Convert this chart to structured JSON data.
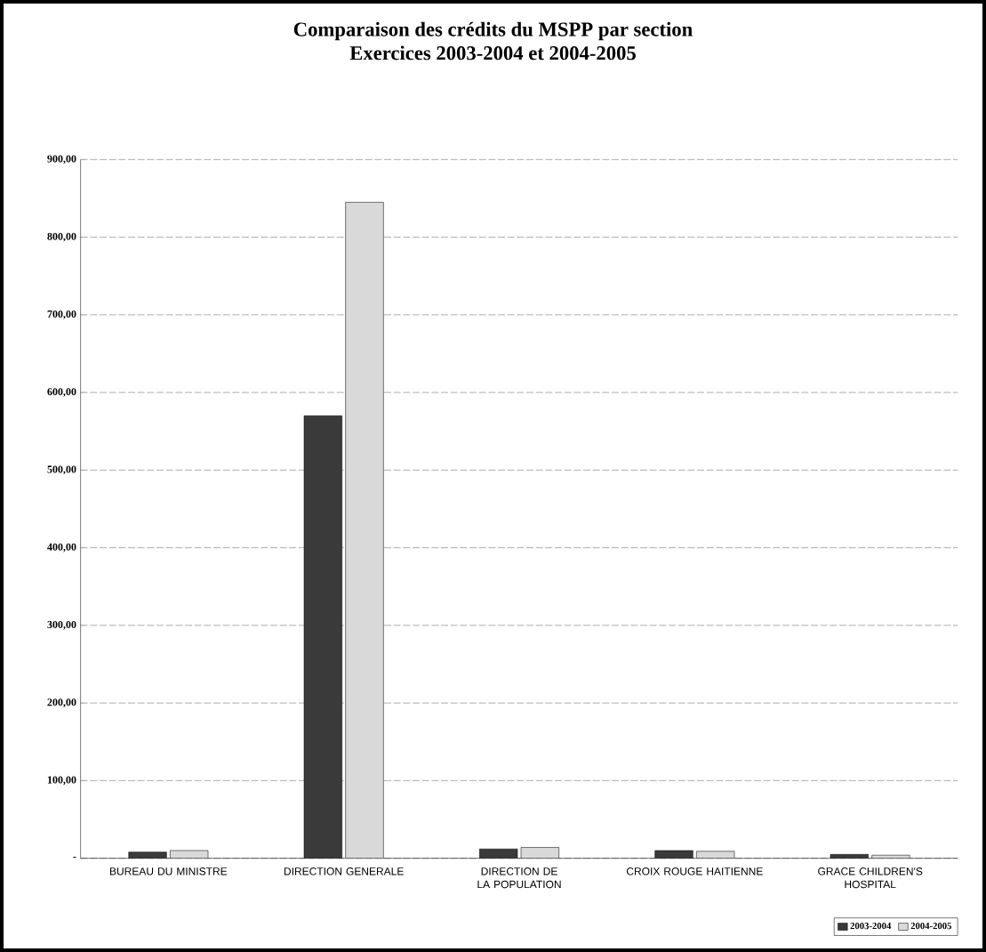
{
  "chart_data": {
    "type": "bar",
    "title": "Comparaison des crédits du MSPP par section\nExercices 2003-2004 et 2004-2005",
    "categories": [
      "BUREAU DU MINISTRE",
      "DIRECTION GENERALE",
      "DIRECTION DE LA POPULATION",
      "CROIX ROUGE HAITIENNE",
      "GRACE CHILDREN'S HOSPITAL"
    ],
    "series": [
      {
        "name": "2003-2004",
        "color": "#3a3a3a",
        "values": [
          8,
          570,
          12,
          10,
          5
        ]
      },
      {
        "name": "2004-2005",
        "color": "#d9d9d9",
        "values": [
          10,
          845,
          14,
          9,
          4
        ]
      }
    ],
    "ylim": [
      0,
      900
    ],
    "yticks": [
      {
        "value": 0,
        "label": "-"
      },
      {
        "value": 100,
        "label": "100,00"
      },
      {
        "value": 200,
        "label": "200,00"
      },
      {
        "value": 300,
        "label": "300,00"
      },
      {
        "value": 400,
        "label": "400,00"
      },
      {
        "value": 500,
        "label": "500,00"
      },
      {
        "value": 600,
        "label": "600,00"
      },
      {
        "value": 700,
        "label": "700,00"
      },
      {
        "value": 800,
        "label": "800,00"
      },
      {
        "value": 900,
        "label": "900,00"
      }
    ],
    "grid": "y",
    "legend": "bottom right"
  }
}
